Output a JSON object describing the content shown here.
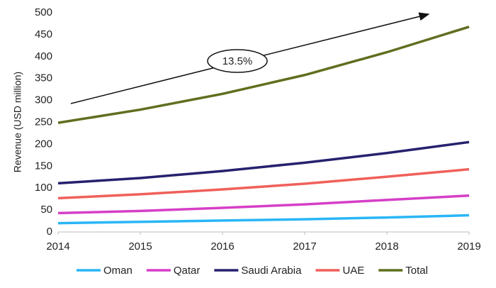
{
  "chart_data": {
    "type": "line",
    "y_label": "Revenue (USD million)",
    "annotation": "13.5%",
    "x": [
      2014,
      2015,
      2016,
      2017,
      2018,
      2019
    ],
    "xlim": [
      2014,
      2019
    ],
    "xticks": [
      2014,
      2015,
      2016,
      2017,
      2018,
      2019
    ],
    "ylim": [
      0,
      500
    ],
    "yticks": [
      0,
      50,
      100,
      150,
      200,
      250,
      300,
      350,
      400,
      450,
      500
    ],
    "grid": false,
    "legend": "bottom",
    "series": [
      {
        "name": "Oman",
        "color": "#29b6f6",
        "values": [
          20,
          23,
          26,
          29,
          33,
          38
        ]
      },
      {
        "name": "Qatar",
        "color": "#d63fc7",
        "values": [
          43,
          48,
          55,
          63,
          73,
          83
        ]
      },
      {
        "name": "Saudi Arabia",
        "color": "#26216e",
        "values": [
          111,
          123,
          139,
          158,
          180,
          205
        ]
      },
      {
        "name": "UAE",
        "color": "#f0605a",
        "values": [
          77,
          86,
          97,
          110,
          126,
          143
        ]
      },
      {
        "name": "Total",
        "color": "#5f6f1f",
        "values": [
          249,
          279,
          315,
          358,
          410,
          468
        ]
      }
    ]
  }
}
